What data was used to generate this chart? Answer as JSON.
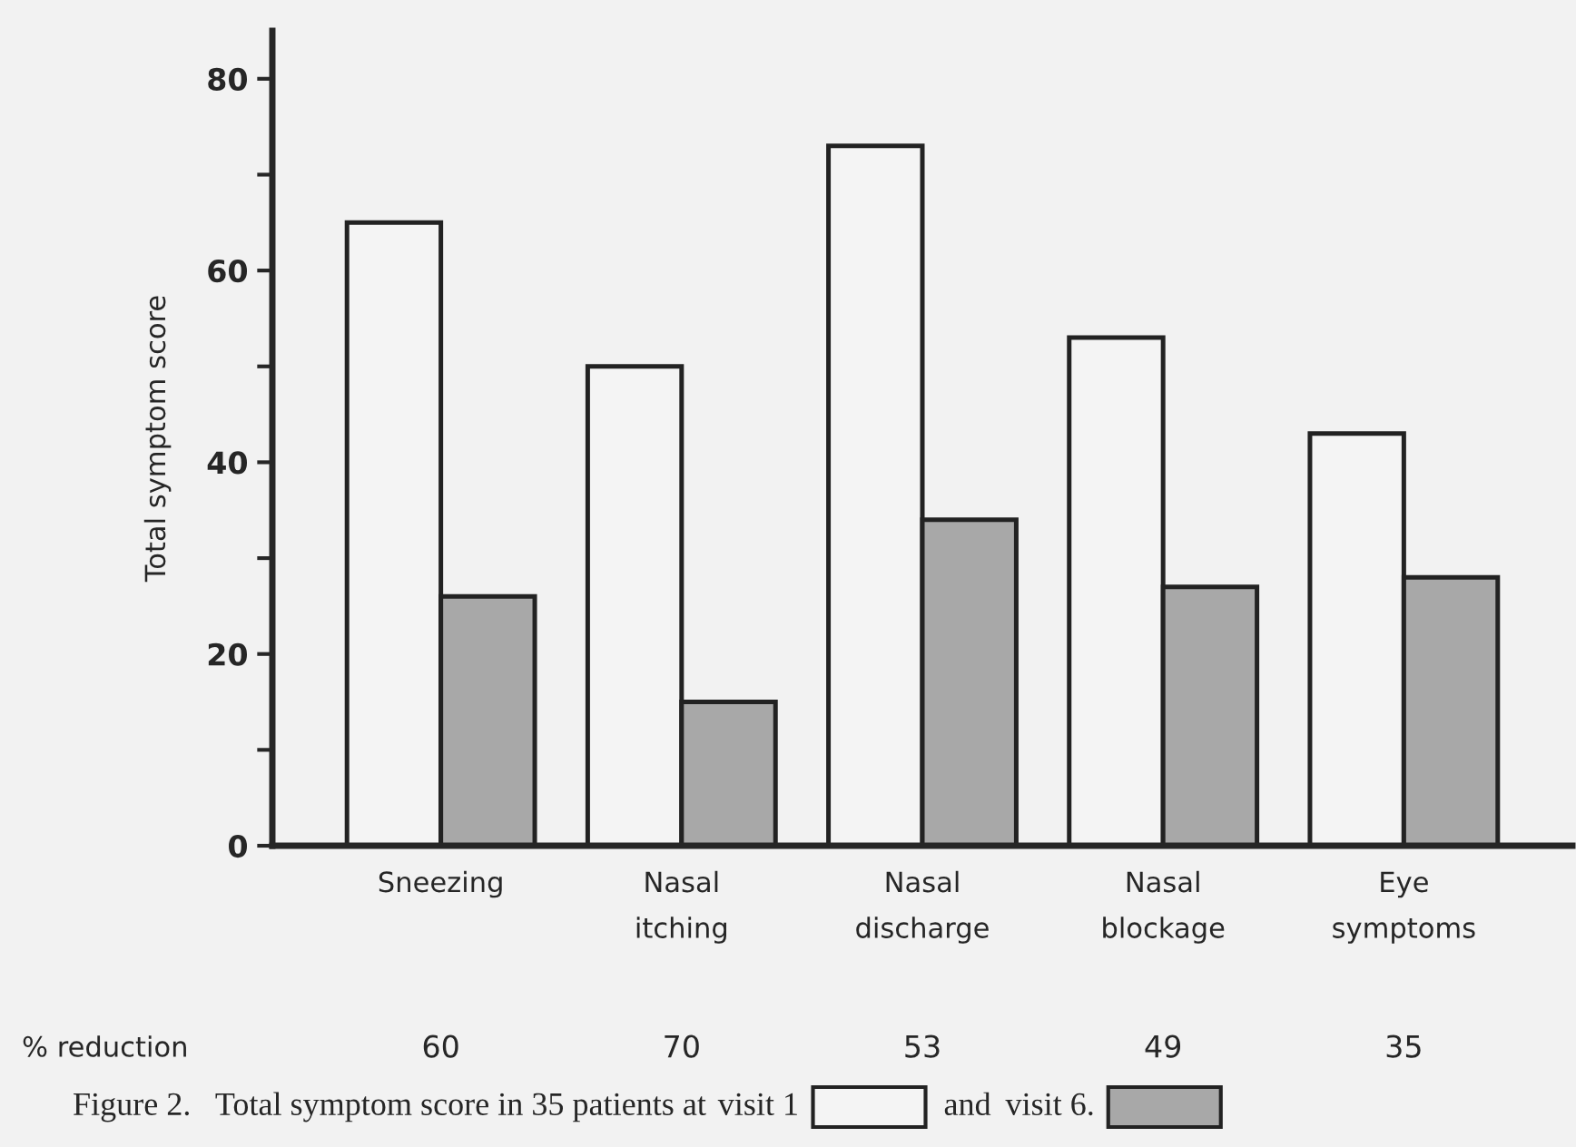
{
  "chart_data": {
    "type": "bar",
    "ylabel": "Total symptom score",
    "categories": [
      "Sneezing",
      "Nasal\nitching",
      "Nasal\ndischarge",
      "Nasal\nblockage",
      "Eye\nsymptoms"
    ],
    "series": [
      {
        "name": "visit 1",
        "color": "#f4f4f4",
        "values": [
          65,
          50,
          73,
          53,
          43
        ]
      },
      {
        "name": "visit 6.",
        "color": "#a8a8a8",
        "values": [
          26,
          15,
          34,
          27,
          28
        ]
      }
    ],
    "ylim": [
      0,
      85
    ],
    "yticks": [
      0,
      {
        "value": 10,
        "label": null
      },
      20,
      {
        "value": 30,
        "label": null
      },
      40,
      {
        "value": 50,
        "label": null
      },
      60,
      {
        "value": 70,
        "label": null
      },
      80
    ],
    "grid": false,
    "legend": "bottom",
    "annotations": [
      "% reduction",
      "60",
      "70",
      "53",
      "49",
      "35",
      "Figure 2.   Total symptom score in 35 patients at",
      "and"
    ]
  }
}
